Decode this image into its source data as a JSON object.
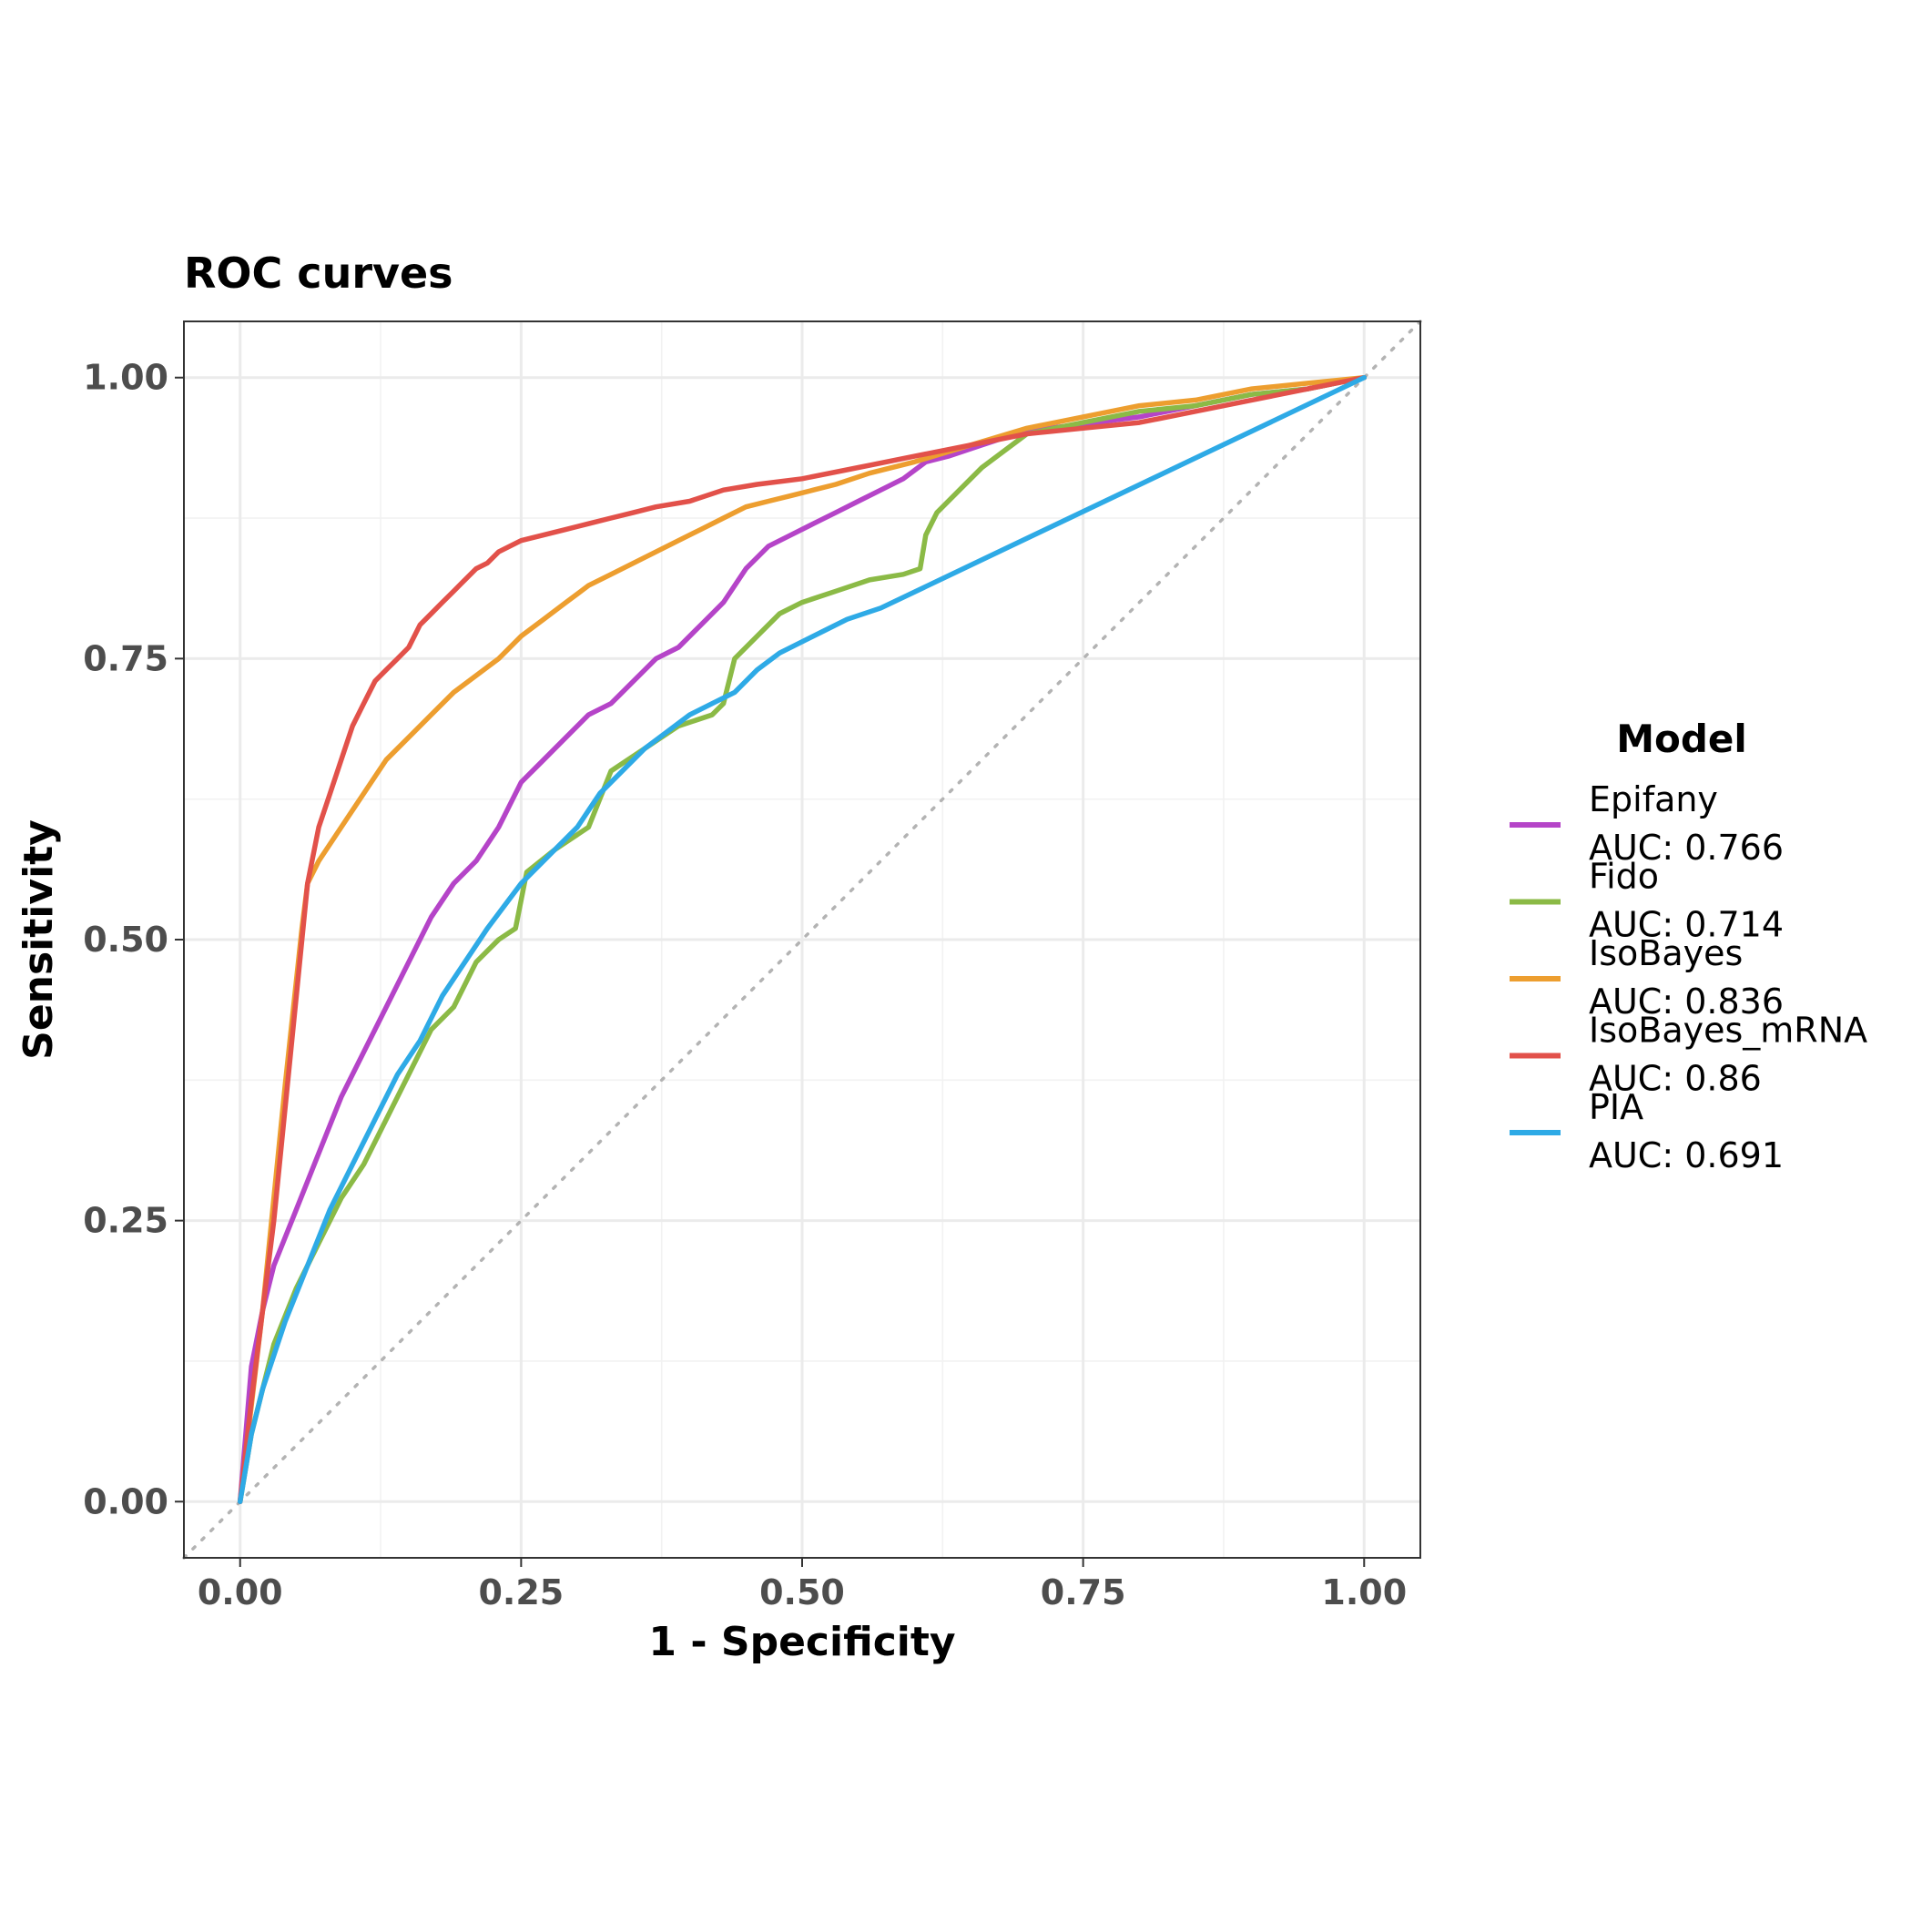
{
  "chart_data": {
    "type": "line",
    "title": "ROC curves",
    "xlabel": "1 - Specificity",
    "ylabel": "Sensitivity",
    "xlim": [
      -0.05,
      1.05
    ],
    "ylim": [
      -0.05,
      1.05
    ],
    "x_ticks": [
      "0.00",
      "0.25",
      "0.50",
      "0.75",
      "1.00"
    ],
    "y_ticks": [
      "0.00",
      "0.25",
      "0.50",
      "0.75",
      "1.00"
    ],
    "grid": true,
    "reference_line": {
      "style": "dotted",
      "color": "#b3b3b3",
      "from": [
        -0.05,
        -0.05
      ],
      "to": [
        1.05,
        1.05
      ]
    },
    "legend": {
      "title": "Model",
      "placement": "right"
    },
    "series": [
      {
        "name": "Epifany",
        "auc_label": "AUC: 0.766",
        "color": "#b544c8",
        "x": [
          0,
          0.01,
          0.02,
          0.03,
          0.05,
          0.07,
          0.09,
          0.11,
          0.13,
          0.15,
          0.17,
          0.19,
          0.21,
          0.23,
          0.25,
          0.27,
          0.29,
          0.31,
          0.33,
          0.35,
          0.37,
          0.39,
          0.41,
          0.43,
          0.45,
          0.47,
          0.49,
          0.51,
          0.53,
          0.55,
          0.57,
          0.59,
          0.61,
          0.63,
          0.66,
          0.69,
          0.72,
          0.76,
          0.8,
          0.85,
          0.9,
          0.95,
          1
        ],
        "y": [
          0,
          0.12,
          0.17,
          0.21,
          0.26,
          0.31,
          0.36,
          0.4,
          0.44,
          0.48,
          0.52,
          0.55,
          0.57,
          0.6,
          0.64,
          0.66,
          0.68,
          0.7,
          0.71,
          0.73,
          0.75,
          0.76,
          0.78,
          0.8,
          0.83,
          0.85,
          0.86,
          0.87,
          0.88,
          0.89,
          0.9,
          0.91,
          0.925,
          0.93,
          0.94,
          0.95,
          0.955,
          0.96,
          0.965,
          0.975,
          0.985,
          0.99,
          1
        ]
      },
      {
        "name": "Fido",
        "auc_label": "AUC: 0.714",
        "color": "#8bba46",
        "x": [
          0,
          0.01,
          0.02,
          0.03,
          0.05,
          0.07,
          0.09,
          0.11,
          0.13,
          0.15,
          0.17,
          0.19,
          0.21,
          0.23,
          0.245,
          0.255,
          0.28,
          0.31,
          0.33,
          0.36,
          0.39,
          0.42,
          0.43,
          0.44,
          0.46,
          0.48,
          0.5,
          0.53,
          0.56,
          0.59,
          0.605,
          0.61,
          0.62,
          0.64,
          0.66,
          0.7,
          0.75,
          0.8,
          0.85,
          0.9,
          0.95,
          1
        ],
        "y": [
          0,
          0.06,
          0.1,
          0.14,
          0.19,
          0.23,
          0.27,
          0.3,
          0.34,
          0.38,
          0.42,
          0.44,
          0.48,
          0.5,
          0.51,
          0.56,
          0.58,
          0.6,
          0.65,
          0.67,
          0.69,
          0.7,
          0.71,
          0.75,
          0.77,
          0.79,
          0.8,
          0.81,
          0.82,
          0.825,
          0.83,
          0.86,
          0.88,
          0.9,
          0.92,
          0.95,
          0.96,
          0.97,
          0.975,
          0.985,
          0.99,
          1
        ]
      },
      {
        "name": "IsoBayes",
        "auc_label": "AUC: 0.836",
        "color": "#ed9e2f",
        "x": [
          0,
          0.02,
          0.04,
          0.055,
          0.06,
          0.07,
          0.09,
          0.11,
          0.13,
          0.15,
          0.17,
          0.19,
          0.21,
          0.23,
          0.25,
          0.27,
          0.29,
          0.31,
          0.33,
          0.35,
          0.37,
          0.39,
          0.41,
          0.43,
          0.45,
          0.47,
          0.49,
          0.51,
          0.53,
          0.56,
          0.6,
          0.65,
          0.7,
          0.75,
          0.8,
          0.85,
          0.9,
          0.95,
          1
        ],
        "y": [
          0,
          0.17,
          0.37,
          0.51,
          0.55,
          0.57,
          0.6,
          0.63,
          0.66,
          0.68,
          0.7,
          0.72,
          0.735,
          0.75,
          0.77,
          0.785,
          0.8,
          0.815,
          0.825,
          0.835,
          0.845,
          0.855,
          0.865,
          0.875,
          0.885,
          0.89,
          0.895,
          0.9,
          0.905,
          0.915,
          0.925,
          0.94,
          0.955,
          0.965,
          0.975,
          0.98,
          0.99,
          0.995,
          1
        ]
      },
      {
        "name": "IsoBayes_mRNA",
        "auc_label": "AUC: 0.86",
        "color": "#e2514a",
        "x": [
          0,
          0.01,
          0.03,
          0.05,
          0.06,
          0.07,
          0.08,
          0.09,
          0.1,
          0.11,
          0.12,
          0.13,
          0.14,
          0.15,
          0.16,
          0.17,
          0.18,
          0.19,
          0.2,
          0.21,
          0.22,
          0.23,
          0.25,
          0.27,
          0.29,
          0.31,
          0.33,
          0.35,
          0.37,
          0.4,
          0.43,
          0.46,
          0.5,
          0.55,
          0.6,
          0.65,
          0.7,
          0.75,
          0.8,
          0.85,
          0.9,
          0.95,
          1
        ],
        "y": [
          0,
          0.09,
          0.25,
          0.45,
          0.55,
          0.6,
          0.63,
          0.66,
          0.69,
          0.71,
          0.73,
          0.74,
          0.75,
          0.76,
          0.78,
          0.79,
          0.8,
          0.81,
          0.82,
          0.83,
          0.835,
          0.845,
          0.855,
          0.86,
          0.865,
          0.87,
          0.875,
          0.88,
          0.885,
          0.89,
          0.9,
          0.905,
          0.91,
          0.92,
          0.93,
          0.94,
          0.95,
          0.955,
          0.96,
          0.97,
          0.98,
          0.99,
          1
        ]
      },
      {
        "name": "PIA",
        "auc_label": "AUC: 0.691",
        "color": "#2eaae6",
        "x": [
          0,
          0.01,
          0.02,
          0.04,
          0.06,
          0.08,
          0.1,
          0.12,
          0.14,
          0.16,
          0.18,
          0.2,
          0.22,
          0.25,
          0.28,
          0.3,
          0.32,
          0.34,
          0.36,
          0.38,
          0.4,
          0.42,
          0.44,
          0.46,
          0.48,
          0.5,
          0.52,
          0.54,
          0.57,
          1
        ],
        "y": [
          0,
          0.06,
          0.1,
          0.16,
          0.21,
          0.26,
          0.3,
          0.34,
          0.38,
          0.41,
          0.45,
          0.48,
          0.51,
          0.55,
          0.58,
          0.6,
          0.63,
          0.65,
          0.67,
          0.685,
          0.7,
          0.71,
          0.72,
          0.74,
          0.755,
          0.765,
          0.775,
          0.785,
          0.795,
          1
        ]
      }
    ]
  }
}
